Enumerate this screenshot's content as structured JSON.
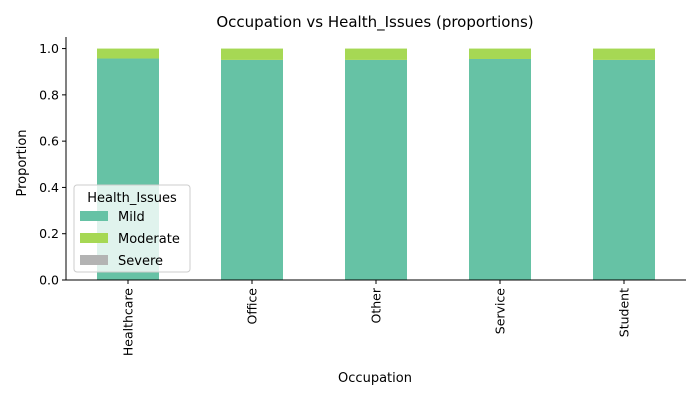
{
  "chart_data": {
    "type": "bar",
    "stacked": true,
    "title": "Occupation vs Health_Issues (proportions)",
    "xlabel": "Occupation",
    "ylabel": "Proportion",
    "categories": [
      "Healthcare",
      "Office",
      "Other",
      "Service",
      "Student"
    ],
    "ylim": [
      0,
      1.05
    ],
    "yticks": [
      "0.0",
      "0.2",
      "0.4",
      "0.6",
      "0.8",
      "1.0"
    ],
    "series": [
      {
        "name": "Mild",
        "color": "#66c2a5",
        "values": [
          0.957,
          0.951,
          0.951,
          0.955,
          0.951
        ]
      },
      {
        "name": "Moderate",
        "color": "#a6d854",
        "values": [
          0.043,
          0.049,
          0.049,
          0.045,
          0.049
        ]
      },
      {
        "name": "Severe",
        "color": "#b3b3b3",
        "values": [
          0.0,
          0.0,
          0.0,
          0.0,
          0.0
        ]
      }
    ],
    "legend": {
      "title": "Health_Issues",
      "position": "lower-left"
    },
    "grid": false
  }
}
